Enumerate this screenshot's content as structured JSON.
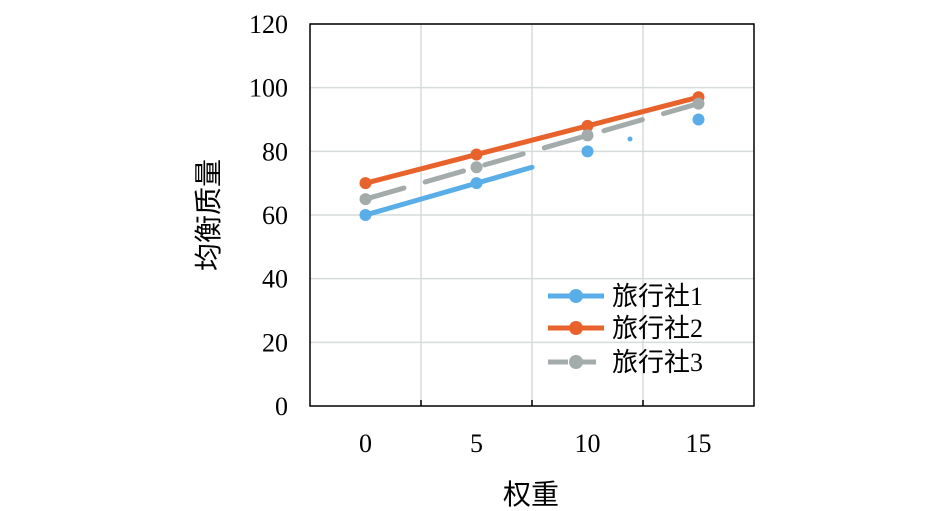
{
  "chart_data": {
    "type": "line",
    "xlabel": "权重",
    "ylabel": "均衡质量",
    "x": [
      0,
      5,
      10,
      15
    ],
    "xticks": [
      "0",
      "5",
      "10",
      "15"
    ],
    "yticks": [
      "0",
      "20",
      "40",
      "60",
      "80",
      "100",
      "120"
    ],
    "xlim": [
      -2.5,
      17.5
    ],
    "ylim": [
      0,
      120
    ],
    "grid": true,
    "legend_position": "bottom-right",
    "series": [
      {
        "name": "旅行社1",
        "color": "#5aaee8",
        "values": [
          60,
          70,
          80,
          90
        ],
        "line_style": "solid",
        "drawn_segment": [
          [
            0,
            60
          ],
          [
            7.5,
            75
          ]
        ]
      },
      {
        "name": "旅行社2",
        "color": "#e8622c",
        "values": [
          70,
          79,
          88,
          97
        ],
        "line_style": "solid",
        "drawn_segment": [
          [
            0,
            70
          ],
          [
            15,
            97
          ]
        ]
      },
      {
        "name": "旅行社3",
        "color": "#a3abab",
        "values": [
          65,
          75,
          85,
          95
        ],
        "line_style": "dashed",
        "drawn_segment": [
          [
            0,
            65
          ],
          [
            15,
            95
          ]
        ]
      }
    ]
  }
}
